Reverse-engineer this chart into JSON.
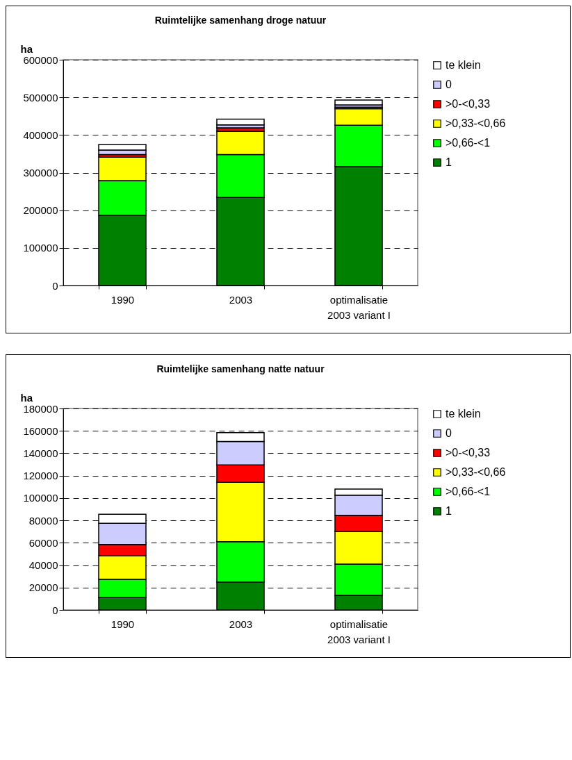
{
  "chart_data": [
    {
      "type": "bar",
      "title": "Ruimtelijke samenhang droge natuur",
      "ylabel": "ha",
      "categories": [
        "1990",
        "2003",
        "optimalisatie 2003 variant I"
      ],
      "stacked": true,
      "ylim": [
        0,
        600000
      ],
      "yticks": [
        0,
        100000,
        200000,
        300000,
        400000,
        500000,
        600000
      ],
      "grid": "y",
      "legend": "right",
      "series": [
        {
          "name": "1",
          "color": "#008000",
          "values": [
            187000,
            234000,
            316000
          ]
        },
        {
          "name": ">0,66-<1",
          "color": "#00ff00",
          "values": [
            92000,
            114000,
            110000
          ]
        },
        {
          "name": ">0,33-<0,66",
          "color": "#ffff00",
          "values": [
            62000,
            62000,
            44000
          ]
        },
        {
          "name": ">0-<0,33",
          "color": "#ff0000",
          "values": [
            7000,
            9000,
            4000
          ]
        },
        {
          "name": "0",
          "color": "#ccccff",
          "values": [
            12000,
            8000,
            6000
          ]
        },
        {
          "name": "te klein",
          "color": "#ffffff",
          "values": [
            15000,
            15000,
            13000
          ]
        }
      ]
    },
    {
      "type": "bar",
      "title": "Ruimtelijke samenhang natte natuur",
      "ylabel": "ha",
      "categories": [
        "1990",
        "2003",
        "optimalisatie 2003 variant I"
      ],
      "stacked": true,
      "ylim": [
        0,
        180000
      ],
      "yticks": [
        0,
        20000,
        40000,
        60000,
        80000,
        100000,
        120000,
        140000,
        160000,
        180000
      ],
      "grid": "y",
      "legend": "right",
      "series": [
        {
          "name": "1",
          "color": "#008000",
          "values": [
            11000,
            25000,
            13000
          ]
        },
        {
          "name": ">0,66-<1",
          "color": "#00ff00",
          "values": [
            16500,
            36000,
            28000
          ]
        },
        {
          "name": ">0,33-<0,66",
          "color": "#ffff00",
          "values": [
            21000,
            53000,
            29000
          ]
        },
        {
          "name": ">0-<0,33",
          "color": "#ff0000",
          "values": [
            10000,
            15500,
            14500
          ]
        },
        {
          "name": "0",
          "color": "#ccccff",
          "values": [
            19000,
            21000,
            18000
          ]
        },
        {
          "name": "te klein",
          "color": "#ffffff",
          "values": [
            8000,
            8000,
            5500
          ]
        }
      ]
    }
  ]
}
